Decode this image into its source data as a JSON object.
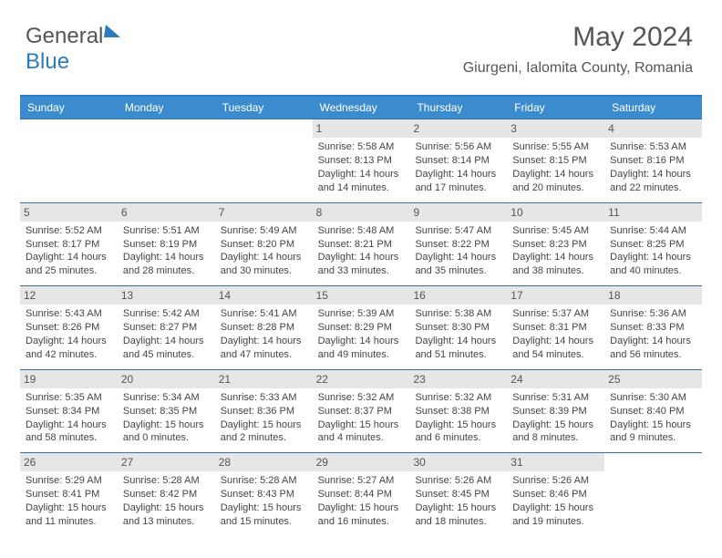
{
  "logo": {
    "text1": "General",
    "text2": "Blue"
  },
  "title": "May 2024",
  "subtitle": "Giurgeni, Ialomita County, Romania",
  "colors": {
    "header_bg": "#3b8ccf",
    "header_border": "#2b7bbf",
    "row_border": "#3b6fa0",
    "daynum_bg": "#e6e6e6",
    "text": "#444"
  },
  "dow": [
    "Sunday",
    "Monday",
    "Tuesday",
    "Wednesday",
    "Thursday",
    "Friday",
    "Saturday"
  ],
  "weeks": [
    [
      {
        "empty": true
      },
      {
        "empty": true
      },
      {
        "empty": true
      },
      {
        "day": "1",
        "sunrise": "Sunrise: 5:58 AM",
        "sunset": "Sunset: 8:13 PM",
        "daylight": "Daylight: 14 hours and 14 minutes."
      },
      {
        "day": "2",
        "sunrise": "Sunrise: 5:56 AM",
        "sunset": "Sunset: 8:14 PM",
        "daylight": "Daylight: 14 hours and 17 minutes."
      },
      {
        "day": "3",
        "sunrise": "Sunrise: 5:55 AM",
        "sunset": "Sunset: 8:15 PM",
        "daylight": "Daylight: 14 hours and 20 minutes."
      },
      {
        "day": "4",
        "sunrise": "Sunrise: 5:53 AM",
        "sunset": "Sunset: 8:16 PM",
        "daylight": "Daylight: 14 hours and 22 minutes."
      }
    ],
    [
      {
        "day": "5",
        "sunrise": "Sunrise: 5:52 AM",
        "sunset": "Sunset: 8:17 PM",
        "daylight": "Daylight: 14 hours and 25 minutes."
      },
      {
        "day": "6",
        "sunrise": "Sunrise: 5:51 AM",
        "sunset": "Sunset: 8:19 PM",
        "daylight": "Daylight: 14 hours and 28 minutes."
      },
      {
        "day": "7",
        "sunrise": "Sunrise: 5:49 AM",
        "sunset": "Sunset: 8:20 PM",
        "daylight": "Daylight: 14 hours and 30 minutes."
      },
      {
        "day": "8",
        "sunrise": "Sunrise: 5:48 AM",
        "sunset": "Sunset: 8:21 PM",
        "daylight": "Daylight: 14 hours and 33 minutes."
      },
      {
        "day": "9",
        "sunrise": "Sunrise: 5:47 AM",
        "sunset": "Sunset: 8:22 PM",
        "daylight": "Daylight: 14 hours and 35 minutes."
      },
      {
        "day": "10",
        "sunrise": "Sunrise: 5:45 AM",
        "sunset": "Sunset: 8:23 PM",
        "daylight": "Daylight: 14 hours and 38 minutes."
      },
      {
        "day": "11",
        "sunrise": "Sunrise: 5:44 AM",
        "sunset": "Sunset: 8:25 PM",
        "daylight": "Daylight: 14 hours and 40 minutes."
      }
    ],
    [
      {
        "day": "12",
        "sunrise": "Sunrise: 5:43 AM",
        "sunset": "Sunset: 8:26 PM",
        "daylight": "Daylight: 14 hours and 42 minutes."
      },
      {
        "day": "13",
        "sunrise": "Sunrise: 5:42 AM",
        "sunset": "Sunset: 8:27 PM",
        "daylight": "Daylight: 14 hours and 45 minutes."
      },
      {
        "day": "14",
        "sunrise": "Sunrise: 5:41 AM",
        "sunset": "Sunset: 8:28 PM",
        "daylight": "Daylight: 14 hours and 47 minutes."
      },
      {
        "day": "15",
        "sunrise": "Sunrise: 5:39 AM",
        "sunset": "Sunset: 8:29 PM",
        "daylight": "Daylight: 14 hours and 49 minutes."
      },
      {
        "day": "16",
        "sunrise": "Sunrise: 5:38 AM",
        "sunset": "Sunset: 8:30 PM",
        "daylight": "Daylight: 14 hours and 51 minutes."
      },
      {
        "day": "17",
        "sunrise": "Sunrise: 5:37 AM",
        "sunset": "Sunset: 8:31 PM",
        "daylight": "Daylight: 14 hours and 54 minutes."
      },
      {
        "day": "18",
        "sunrise": "Sunrise: 5:36 AM",
        "sunset": "Sunset: 8:33 PM",
        "daylight": "Daylight: 14 hours and 56 minutes."
      }
    ],
    [
      {
        "day": "19",
        "sunrise": "Sunrise: 5:35 AM",
        "sunset": "Sunset: 8:34 PM",
        "daylight": "Daylight: 14 hours and 58 minutes."
      },
      {
        "day": "20",
        "sunrise": "Sunrise: 5:34 AM",
        "sunset": "Sunset: 8:35 PM",
        "daylight": "Daylight: 15 hours and 0 minutes."
      },
      {
        "day": "21",
        "sunrise": "Sunrise: 5:33 AM",
        "sunset": "Sunset: 8:36 PM",
        "daylight": "Daylight: 15 hours and 2 minutes."
      },
      {
        "day": "22",
        "sunrise": "Sunrise: 5:32 AM",
        "sunset": "Sunset: 8:37 PM",
        "daylight": "Daylight: 15 hours and 4 minutes."
      },
      {
        "day": "23",
        "sunrise": "Sunrise: 5:32 AM",
        "sunset": "Sunset: 8:38 PM",
        "daylight": "Daylight: 15 hours and 6 minutes."
      },
      {
        "day": "24",
        "sunrise": "Sunrise: 5:31 AM",
        "sunset": "Sunset: 8:39 PM",
        "daylight": "Daylight: 15 hours and 8 minutes."
      },
      {
        "day": "25",
        "sunrise": "Sunrise: 5:30 AM",
        "sunset": "Sunset: 8:40 PM",
        "daylight": "Daylight: 15 hours and 9 minutes."
      }
    ],
    [
      {
        "day": "26",
        "sunrise": "Sunrise: 5:29 AM",
        "sunset": "Sunset: 8:41 PM",
        "daylight": "Daylight: 15 hours and 11 minutes."
      },
      {
        "day": "27",
        "sunrise": "Sunrise: 5:28 AM",
        "sunset": "Sunset: 8:42 PM",
        "daylight": "Daylight: 15 hours and 13 minutes."
      },
      {
        "day": "28",
        "sunrise": "Sunrise: 5:28 AM",
        "sunset": "Sunset: 8:43 PM",
        "daylight": "Daylight: 15 hours and 15 minutes."
      },
      {
        "day": "29",
        "sunrise": "Sunrise: 5:27 AM",
        "sunset": "Sunset: 8:44 PM",
        "daylight": "Daylight: 15 hours and 16 minutes."
      },
      {
        "day": "30",
        "sunrise": "Sunrise: 5:26 AM",
        "sunset": "Sunset: 8:45 PM",
        "daylight": "Daylight: 15 hours and 18 minutes."
      },
      {
        "day": "31",
        "sunrise": "Sunrise: 5:26 AM",
        "sunset": "Sunset: 8:46 PM",
        "daylight": "Daylight: 15 hours and 19 minutes."
      },
      {
        "empty": true
      }
    ]
  ]
}
